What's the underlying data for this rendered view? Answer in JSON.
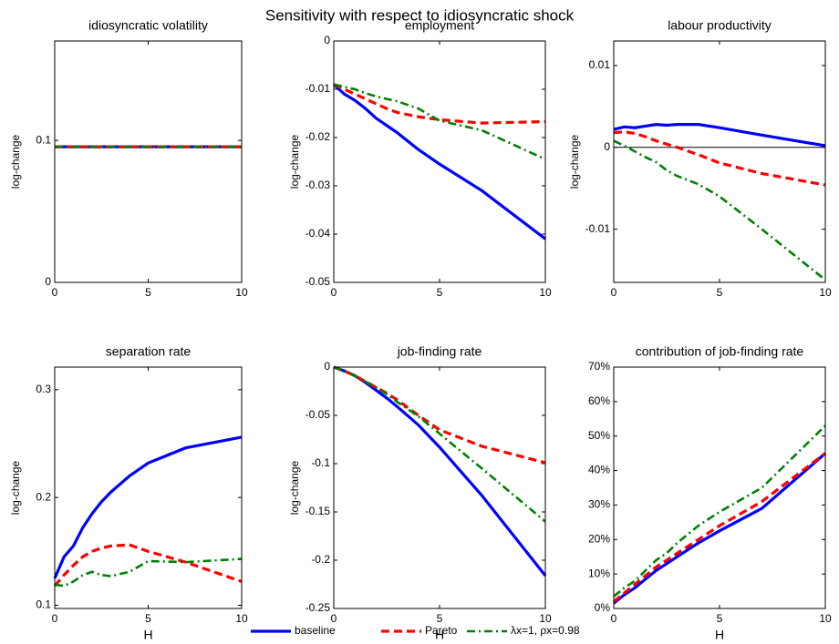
{
  "title": "Sensitivity with respect to idiosyncratic shock",
  "chart_data": [
    {
      "type": "line",
      "title": "idiosyncratic volatility",
      "ylabel": "log-change",
      "x": [
        0,
        0.5,
        1,
        1.5,
        2,
        2.5,
        3,
        4,
        5,
        7,
        10
      ],
      "xlim": [
        0,
        10
      ],
      "xticks": [
        0,
        5,
        10
      ],
      "ylim": [
        0,
        0.17
      ],
      "yticks": [
        0,
        0.1
      ],
      "series": [
        {
          "name": "baseline",
          "color": "#0000ff",
          "linestyle": "solid",
          "values": [
            0.0955,
            0.0955,
            0.0955,
            0.0955,
            0.0955,
            0.0955,
            0.0955,
            0.0955,
            0.0955,
            0.0955,
            0.0955
          ]
        },
        {
          "name": "Pareto",
          "color": "#ff0000",
          "linestyle": "dashed",
          "values": [
            0.0955,
            0.0955,
            0.0955,
            0.0955,
            0.0955,
            0.0955,
            0.0955,
            0.0955,
            0.0955,
            0.0955,
            0.0955
          ]
        },
        {
          "name": "λx=1, ρx=0.98",
          "color": "#008000",
          "linestyle": "dashdot",
          "values": [
            0.0955,
            0.0955,
            0.0955,
            0.0955,
            0.0955,
            0.0955,
            0.0955,
            0.0955,
            0.0955,
            0.0955,
            0.0955
          ]
        }
      ]
    },
    {
      "type": "line",
      "title": "employment",
      "ylabel": "log-change",
      "x": [
        0,
        0.5,
        1,
        1.5,
        2,
        2.5,
        3,
        4,
        5,
        7,
        10
      ],
      "xlim": [
        0,
        10
      ],
      "xticks": [
        0,
        5,
        10
      ],
      "ylim": [
        -0.05,
        0
      ],
      "yticks": [
        -0.05,
        -0.04,
        -0.03,
        -0.02,
        -0.01,
        0
      ],
      "series": [
        {
          "color": "#0000ff",
          "linestyle": "solid",
          "values": [
            -0.009,
            -0.011,
            -0.0123,
            -0.014,
            -0.016,
            -0.0175,
            -0.019,
            -0.0225,
            -0.0255,
            -0.031,
            -0.041
          ]
        },
        {
          "color": "#ff0000",
          "linestyle": "dashed",
          "values": [
            -0.009,
            -0.01,
            -0.011,
            -0.012,
            -0.013,
            -0.014,
            -0.0148,
            -0.0157,
            -0.0163,
            -0.017,
            -0.0167
          ]
        },
        {
          "color": "#008000",
          "linestyle": "dashdot",
          "values": [
            -0.009,
            -0.0095,
            -0.01,
            -0.0108,
            -0.0115,
            -0.012,
            -0.0125,
            -0.014,
            -0.0165,
            -0.0185,
            -0.0245
          ]
        }
      ]
    },
    {
      "type": "line",
      "title": "labour productivity",
      "ylabel": "log-change",
      "zero_line": true,
      "x": [
        0,
        0.5,
        1,
        1.5,
        2,
        2.5,
        3,
        4,
        5,
        7,
        10
      ],
      "xlim": [
        0,
        10
      ],
      "xticks": [
        0,
        5,
        10
      ],
      "ylim": [
        -0.0165,
        0.013
      ],
      "yticks": [
        -0.01,
        0,
        0.01
      ],
      "series": [
        {
          "color": "#0000ff",
          "linestyle": "solid",
          "values": [
            0.0022,
            0.0025,
            0.0024,
            0.0026,
            0.0028,
            0.0027,
            0.0028,
            0.0028,
            0.0024,
            0.0015,
            0.0002
          ]
        },
        {
          "color": "#ff0000",
          "linestyle": "dashed",
          "values": [
            0.0018,
            0.0019,
            0.0017,
            0.0013,
            0.0008,
            0.0004,
            0,
            -0.0009,
            -0.0019,
            -0.0032,
            -0.0046
          ]
        },
        {
          "color": "#008000",
          "linestyle": "dashdot",
          "values": [
            0.0008,
            0.0002,
            -0.0005,
            -0.0012,
            -0.0018,
            -0.0028,
            -0.0035,
            -0.0045,
            -0.006,
            -0.01,
            -0.0162
          ]
        }
      ]
    },
    {
      "type": "line",
      "title": "separation rate",
      "ylabel": "log-change",
      "xlabel": "H",
      "x": [
        0,
        0.5,
        1,
        1.5,
        2,
        2.5,
        3,
        4,
        5,
        7,
        10
      ],
      "xlim": [
        0,
        10
      ],
      "xticks": [
        0,
        5,
        10
      ],
      "ylim": [
        0.097,
        0.321
      ],
      "yticks": [
        0.1,
        0.2,
        0.3
      ],
      "series": [
        {
          "color": "#0000ff",
          "linestyle": "solid",
          "values": [
            0.125,
            0.145,
            0.155,
            0.172,
            0.185,
            0.196,
            0.205,
            0.22,
            0.232,
            0.246,
            0.256
          ]
        },
        {
          "color": "#ff0000",
          "linestyle": "dashed",
          "values": [
            0.118,
            0.128,
            0.137,
            0.145,
            0.15,
            0.153,
            0.155,
            0.156,
            0.15,
            0.14,
            0.122
          ]
        },
        {
          "color": "#008000",
          "linestyle": "dashdot",
          "values": [
            0.119,
            0.118,
            0.122,
            0.128,
            0.131,
            0.128,
            0.127,
            0.131,
            0.141,
            0.14,
            0.143
          ]
        }
      ]
    },
    {
      "type": "line",
      "title": "job-finding rate",
      "ylabel": "log-change",
      "xlabel": "H",
      "zero_line": true,
      "x": [
        0,
        0.5,
        1,
        1.5,
        2,
        2.5,
        3,
        4,
        5,
        7,
        10
      ],
      "xlim": [
        0,
        10
      ],
      "xticks": [
        0,
        5,
        10
      ],
      "ylim": [
        -0.25,
        0
      ],
      "yticks": [
        -0.25,
        -0.2,
        -0.15,
        -0.1,
        -0.05,
        0
      ],
      "series": [
        {
          "color": "#0000ff",
          "linestyle": "solid",
          "values": [
            0,
            -0.004,
            -0.009,
            -0.016,
            -0.024,
            -0.032,
            -0.041,
            -0.06,
            -0.083,
            -0.133,
            -0.216
          ]
        },
        {
          "color": "#ff0000",
          "linestyle": "dashed",
          "values": [
            0,
            -0.004,
            -0.009,
            -0.015,
            -0.021,
            -0.027,
            -0.034,
            -0.05,
            -0.065,
            -0.082,
            -0.099
          ]
        },
        {
          "color": "#008000",
          "linestyle": "dashdot",
          "values": [
            0,
            -0.004,
            -0.009,
            -0.015,
            -0.021,
            -0.028,
            -0.036,
            -0.051,
            -0.069,
            -0.105,
            -0.16
          ]
        }
      ]
    },
    {
      "type": "line",
      "title": "contribution of job-finding rate",
      "xlabel": "H",
      "x": [
        0,
        0.5,
        1,
        1.5,
        2,
        2.5,
        3,
        4,
        5,
        7,
        10
      ],
      "xlim": [
        0,
        10
      ],
      "xticks": [
        0,
        5,
        10
      ],
      "ylim": [
        0,
        70
      ],
      "yticks": [
        {
          "value": 0,
          "label": "0%"
        },
        {
          "value": 10,
          "label": "10%"
        },
        {
          "value": 20,
          "label": "20%"
        },
        {
          "value": 30,
          "label": "30%"
        },
        {
          "value": 40,
          "label": "40%"
        },
        {
          "value": 50,
          "label": "50%"
        },
        {
          "value": 60,
          "label": "60%"
        },
        {
          "value": 70,
          "label": "70%"
        }
      ],
      "series": [
        {
          "color": "#0000ff",
          "linestyle": "solid",
          "values": [
            1.5,
            4,
            6,
            8.5,
            11,
            13,
            15,
            19,
            22.5,
            29,
            45
          ]
        },
        {
          "color": "#ff0000",
          "linestyle": "dashed",
          "values": [
            2,
            4.5,
            7,
            9.5,
            12,
            14,
            16,
            20,
            24,
            31,
            45
          ]
        },
        {
          "color": "#008000",
          "linestyle": "dashdot",
          "values": [
            3.5,
            6,
            8,
            11,
            14,
            16,
            19,
            24,
            28,
            35,
            53
          ]
        }
      ]
    }
  ]
}
